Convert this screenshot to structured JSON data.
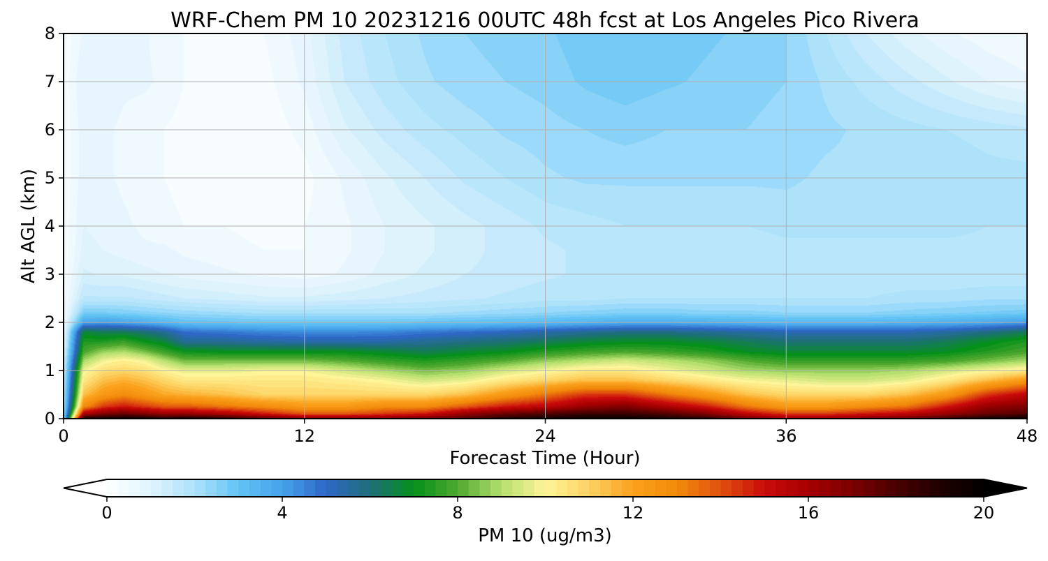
{
  "chart_data": {
    "type": "heatmap",
    "title": "WRF-Chem PM 10  20231216 00UTC 48h fcst at Los Angeles Pico Rivera",
    "xlabel": "Forecast Time (Hour)",
    "ylabel": "Alt AGL (km)",
    "xlim": [
      0,
      48
    ],
    "ylim": [
      0,
      8
    ],
    "xticks": [
      0,
      12,
      24,
      36,
      48
    ],
    "yticks": [
      0,
      1,
      2,
      3,
      4,
      5,
      6,
      7,
      8
    ],
    "grid": true,
    "colorbar": {
      "label": "PM 10  (ug/m3)",
      "min": 0,
      "max": 20,
      "ticks": [
        0,
        4,
        8,
        12,
        16,
        20
      ],
      "extend": "both",
      "orientation": "horizontal",
      "position": "bottom",
      "stops": [
        {
          "value": 0,
          "color": "#ffffff"
        },
        {
          "value": 1,
          "color": "#dff3fd"
        },
        {
          "value": 2,
          "color": "#aee2fb"
        },
        {
          "value": 3,
          "color": "#62c3f5"
        },
        {
          "value": 4,
          "color": "#46a2ea"
        },
        {
          "value": 5,
          "color": "#2e67c6"
        },
        {
          "value": 6,
          "color": "#1f6f7a"
        },
        {
          "value": 7,
          "color": "#05901a"
        },
        {
          "value": 8,
          "color": "#4ea82e"
        },
        {
          "value": 9,
          "color": "#b5e06e"
        },
        {
          "value": 10,
          "color": "#fff598"
        },
        {
          "value": 11,
          "color": "#fcd263"
        },
        {
          "value": 12,
          "color": "#fba11c"
        },
        {
          "value": 13,
          "color": "#f28b0b"
        },
        {
          "value": 14,
          "color": "#e0500e"
        },
        {
          "value": 15,
          "color": "#ca0b0b"
        },
        {
          "value": 16,
          "color": "#a70000"
        },
        {
          "value": 17,
          "color": "#7a0000"
        },
        {
          "value": 18,
          "color": "#4a0000"
        },
        {
          "value": 19,
          "color": "#200000"
        },
        {
          "value": 20,
          "color": "#000000"
        }
      ]
    },
    "times": [
      0,
      1,
      2,
      3,
      4,
      5,
      6,
      8,
      10,
      12,
      14,
      16,
      18,
      20,
      22,
      24,
      26,
      28,
      30,
      32,
      34,
      36,
      38,
      40,
      42,
      44,
      46,
      48
    ],
    "heights": [
      0,
      0.1,
      0.25,
      0.5,
      0.8,
      1.0,
      1.2,
      1.4,
      1.6,
      1.8,
      2.0,
      2.2,
      2.5,
      3,
      3.5,
      4,
      5,
      6,
      7,
      8
    ],
    "values": [
      [
        2.5,
        19.5,
        19.5,
        19.8,
        19.6,
        19.0,
        19.5,
        19.0,
        18.0,
        17.0,
        17.0,
        17.0,
        17.5,
        18.0,
        19.0,
        19.5,
        19.8,
        19.9,
        19.5,
        19.0,
        17.5,
        16.5,
        16.5,
        17.0,
        17.5,
        18.5,
        19.5,
        19.8
      ],
      [
        2.2,
        16.0,
        17.0,
        17.5,
        17.0,
        16.5,
        16.5,
        16.0,
        15.0,
        14.0,
        14.0,
        14.5,
        15.0,
        16.5,
        17.5,
        18.0,
        18.5,
        18.5,
        18.0,
        17.0,
        15.5,
        14.5,
        14.5,
        15.0,
        15.5,
        16.5,
        17.5,
        18.0
      ],
      [
        2.0,
        13.0,
        14.5,
        15.0,
        14.5,
        14.0,
        14.0,
        13.5,
        13.0,
        12.5,
        12.5,
        13.0,
        13.0,
        14.0,
        15.0,
        15.5,
        16.5,
        17.0,
        16.0,
        15.0,
        13.5,
        12.5,
        12.5,
        13.0,
        13.5,
        15.0,
        16.5,
        17.0
      ],
      [
        1.8,
        11.5,
        12.5,
        13.0,
        12.5,
        12.0,
        11.8,
        11.5,
        11.0,
        11.0,
        11.0,
        11.0,
        11.0,
        11.5,
        12.5,
        13.5,
        14.5,
        14.5,
        13.5,
        12.5,
        11.5,
        11.0,
        11.0,
        11.0,
        11.5,
        12.5,
        14.5,
        15.5
      ],
      [
        1.6,
        10.5,
        11.5,
        11.8,
        11.5,
        11.0,
        10.5,
        10.5,
        10.5,
        10.5,
        10.3,
        10.0,
        9.5,
        9.8,
        10.5,
        11.0,
        11.5,
        11.5,
        11.0,
        10.5,
        10.0,
        9.8,
        9.5,
        9.5,
        9.8,
        10.5,
        11.5,
        12.5
      ],
      [
        1.4,
        10.0,
        10.8,
        11.0,
        10.8,
        10.2,
        9.8,
        9.8,
        10.0,
        10.0,
        9.5,
        9.0,
        8.5,
        8.8,
        9.5,
        10.0,
        10.5,
        10.5,
        10.0,
        9.5,
        9.0,
        8.8,
        8.8,
        8.8,
        9.0,
        9.5,
        10.0,
        10.5
      ],
      [
        1.2,
        9.0,
        10.0,
        10.3,
        10.0,
        9.2,
        8.5,
        8.5,
        8.5,
        8.5,
        8.2,
        7.8,
        7.5,
        7.8,
        8.2,
        8.8,
        9.2,
        9.5,
        9.2,
        8.8,
        8.2,
        7.8,
        7.8,
        7.8,
        7.8,
        8.0,
        8.5,
        9.0
      ],
      [
        1.0,
        8.0,
        8.8,
        9.0,
        8.5,
        7.8,
        7.2,
        7.0,
        7.0,
        7.0,
        7.0,
        6.8,
        6.5,
        6.8,
        7.0,
        7.5,
        7.8,
        8.0,
        7.8,
        7.5,
        7.0,
        6.8,
        6.8,
        6.8,
        6.8,
        7.0,
        7.5,
        8.0
      ],
      [
        0.8,
        7.5,
        7.5,
        7.8,
        7.2,
        6.8,
        5.8,
        5.8,
        5.6,
        5.5,
        5.5,
        5.5,
        5.8,
        6.0,
        6.2,
        6.5,
        6.8,
        7.0,
        7.0,
        6.8,
        6.5,
        6.2,
        6.2,
        6.2,
        6.2,
        6.5,
        7.0,
        7.5
      ],
      [
        0.6,
        6.8,
        6.5,
        6.5,
        6.2,
        5.8,
        5.0,
        4.8,
        4.6,
        4.5,
        4.5,
        4.6,
        4.8,
        5.0,
        5.2,
        5.5,
        5.8,
        6.0,
        6.0,
        5.8,
        5.6,
        5.4,
        5.4,
        5.4,
        5.4,
        5.6,
        6.0,
        6.5
      ],
      [
        0.5,
        4.0,
        4.2,
        4.0,
        3.8,
        3.5,
        3.2,
        3.1,
        3.0,
        3.0,
        3.0,
        3.0,
        3.1,
        3.2,
        3.3,
        3.4,
        3.6,
        3.8,
        3.8,
        3.7,
        3.6,
        3.5,
        3.5,
        3.5,
        3.6,
        3.7,
        3.9,
        4.2
      ],
      [
        0.4,
        2.8,
        2.8,
        2.7,
        2.6,
        2.5,
        2.4,
        2.3,
        2.2,
        2.2,
        2.2,
        2.2,
        2.2,
        2.3,
        2.4,
        2.5,
        2.6,
        2.7,
        2.7,
        2.6,
        2.6,
        2.5,
        2.5,
        2.5,
        2.6,
        2.7,
        2.8,
        2.9
      ],
      [
        0.4,
        1.8,
        1.8,
        1.8,
        1.7,
        1.6,
        1.5,
        1.4,
        1.3,
        1.3,
        1.4,
        1.5,
        1.6,
        1.7,
        1.8,
        1.9,
        1.9,
        2.0,
        2.0,
        2.0,
        2.0,
        2.0,
        2.0,
        2.0,
        2.1,
        2.1,
        2.2,
        2.2
      ],
      [
        0.3,
        1.3,
        1.2,
        1.2,
        1.1,
        1.0,
        0.9,
        0.8,
        0.7,
        0.6,
        0.8,
        1.1,
        1.3,
        1.5,
        1.6,
        1.7,
        1.8,
        1.8,
        1.8,
        1.8,
        1.8,
        1.8,
        1.8,
        1.8,
        1.8,
        1.8,
        1.8,
        1.8
      ],
      [
        0.3,
        1.1,
        1.0,
        0.9,
        0.8,
        0.8,
        0.7,
        0.6,
        0.5,
        0.5,
        0.7,
        1.0,
        1.2,
        1.4,
        1.6,
        1.7,
        1.8,
        1.8,
        1.8,
        1.8,
        1.8,
        1.9,
        1.9,
        1.9,
        1.9,
        1.9,
        1.9,
        1.8
      ],
      [
        0.3,
        1.0,
        0.9,
        0.8,
        0.7,
        0.6,
        0.5,
        0.5,
        0.4,
        0.5,
        0.7,
        1.0,
        1.2,
        1.4,
        1.6,
        1.8,
        1.9,
        2.0,
        2.0,
        2.0,
        2.0,
        2.1,
        2.1,
        2.1,
        2.1,
        2.1,
        2.0,
        2.0
      ],
      [
        0.3,
        0.9,
        0.8,
        0.7,
        0.6,
        0.5,
        0.4,
        0.3,
        0.3,
        0.4,
        0.8,
        1.2,
        1.5,
        1.8,
        2.0,
        2.2,
        2.3,
        2.3,
        2.3,
        2.3,
        2.3,
        2.3,
        2.2,
        2.2,
        2.2,
        2.2,
        2.1,
        2.1
      ],
      [
        0.3,
        0.9,
        0.8,
        0.7,
        0.6,
        0.5,
        0.4,
        0.3,
        0.3,
        0.6,
        1.2,
        1.6,
        1.9,
        2.1,
        2.3,
        2.4,
        2.5,
        2.6,
        2.5,
        2.5,
        2.5,
        2.4,
        2.3,
        2.2,
        2.1,
        2.0,
        1.9,
        1.8
      ],
      [
        0.3,
        1.0,
        0.9,
        0.8,
        0.8,
        0.7,
        0.5,
        0.4,
        0.4,
        0.8,
        1.5,
        1.9,
        2.2,
        2.4,
        2.5,
        2.6,
        2.8,
        2.9,
        2.8,
        2.7,
        2.6,
        2.5,
        2.2,
        1.9,
        1.6,
        1.3,
        1.0,
        0.8
      ],
      [
        0.3,
        0.8,
        0.8,
        0.8,
        0.8,
        0.6,
        0.5,
        0.4,
        0.5,
        0.9,
        1.6,
        2.0,
        2.3,
        2.5,
        2.6,
        2.7,
        2.9,
        3.0,
        2.9,
        2.8,
        2.7,
        2.5,
        2.0,
        1.5,
        1.1,
        0.8,
        0.6,
        0.5
      ]
    ]
  }
}
